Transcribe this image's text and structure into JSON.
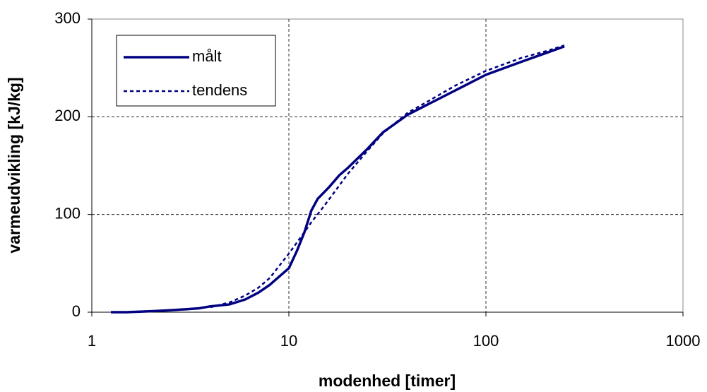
{
  "chart_data": {
    "type": "line",
    "x_label": "modenhed [timer]",
    "y_label": "varmeudvikling [kJ/kg]",
    "log_x": true,
    "xlim": [
      1,
      1000
    ],
    "xticks": [
      1,
      10,
      100,
      1000
    ],
    "ylim": [
      0,
      300
    ],
    "yticks": [
      0,
      100,
      200,
      300
    ],
    "grid": true,
    "legend": "upper-left",
    "series": [
      {
        "name": "målt",
        "color": "#000080",
        "style": "solid",
        "x": [
          1.25,
          1.5,
          2,
          2.5,
          3,
          3.5,
          4,
          5,
          6,
          7,
          8,
          9,
          10,
          11,
          12,
          13,
          14,
          16,
          18,
          20,
          25,
          30,
          40,
          50,
          70,
          100,
          150,
          200,
          250
        ],
        "values": [
          0,
          0,
          1,
          2,
          3,
          4,
          6,
          8,
          13,
          20,
          28,
          37,
          45,
          63,
          82,
          104,
          116,
          128,
          140,
          148,
          167,
          184,
          202,
          212,
          227,
          243,
          256,
          265,
          272
        ]
      },
      {
        "name": "tendens",
        "color": "#000080",
        "style": "dotted",
        "x": [
          4,
          5,
          6,
          7,
          8,
          10,
          12,
          13,
          15,
          20,
          25,
          30,
          40,
          50,
          70,
          100,
          150,
          200,
          250
        ],
        "values": [
          5,
          10,
          17,
          25,
          35,
          60,
          82,
          92,
          108,
          142,
          165,
          183,
          204,
          215,
          232,
          247,
          260,
          267,
          273
        ]
      }
    ]
  }
}
